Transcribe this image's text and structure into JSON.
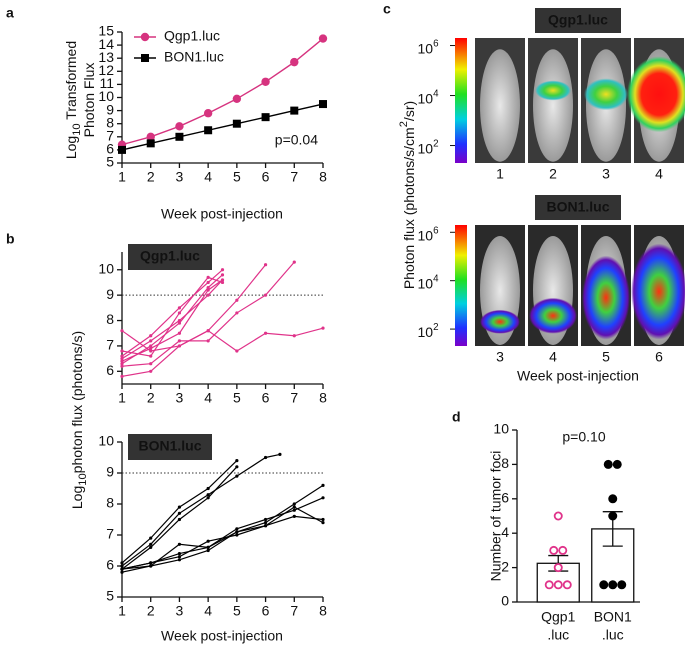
{
  "chart_data": [
    {
      "type": "line",
      "panel": "a",
      "ylabel": [
        [
          "Log",
          {
            "sub": "10"
          },
          " Transformed"
        ],
        [
          "Photon Flux"
        ]
      ],
      "xlabel": "Week post-injection",
      "x": [
        1,
        2,
        3,
        4,
        5,
        6,
        7,
        8
      ],
      "xlim": [
        1,
        8
      ],
      "xticks": [
        1,
        2,
        3,
        4,
        5,
        6,
        7,
        8
      ],
      "ylim": [
        5,
        15
      ],
      "yticks": [
        5,
        6,
        7,
        8,
        9,
        10,
        11,
        12,
        13,
        14,
        15
      ],
      "legend": "upper left",
      "annotation": "p=0.04",
      "series": [
        {
          "name": "Qgp1.luc",
          "color": "#d6337f",
          "marker": "circle",
          "values": [
            6.4,
            7.0,
            7.8,
            8.8,
            9.9,
            11.2,
            12.7,
            14.5
          ]
        },
        {
          "name": "BON1.luc",
          "color": "#000000",
          "marker": "square",
          "values": [
            6.0,
            6.5,
            7.0,
            7.5,
            8.0,
            8.5,
            9.0,
            9.5
          ]
        }
      ]
    },
    {
      "type": "line",
      "panel": "b",
      "tag": "Qgp1.luc",
      "ylabel": [
        [
          "Log",
          {
            "sub": "10"
          },
          "photon flux (photons/s)"
        ]
      ],
      "color": "#e0338a",
      "marker": "dot",
      "xlim": [
        1,
        8
      ],
      "xticks": [
        1,
        2,
        3,
        4,
        5,
        6,
        7,
        8
      ],
      "ylim": [
        5.5,
        10.7
      ],
      "yticks": [
        6,
        7,
        8,
        9,
        10
      ],
      "refline": 9,
      "series": [
        {
          "x": [
            1,
            2,
            3,
            4,
            4.5
          ],
          "values": [
            6.5,
            7.2,
            8.0,
            9.0,
            9.6
          ]
        },
        {
          "x": [
            1,
            2,
            3,
            4,
            4.5
          ],
          "values": [
            6.3,
            7.0,
            7.9,
            9.3,
            9.8
          ]
        },
        {
          "x": [
            1,
            2,
            3,
            4,
            4.5
          ],
          "values": [
            6.6,
            7.4,
            8.5,
            9.5,
            10.0
          ]
        },
        {
          "x": [
            1,
            2,
            3,
            4,
            4.5
          ],
          "values": [
            6.8,
            6.6,
            8.3,
            9.7,
            9.5
          ]
        },
        {
          "x": [
            1,
            2,
            3,
            4,
            5,
            6
          ],
          "values": [
            5.8,
            6.0,
            7.0,
            7.6,
            8.8,
            10.2
          ]
        },
        {
          "x": [
            1,
            2,
            3,
            4,
            5,
            6,
            7
          ],
          "values": [
            6.2,
            6.3,
            7.2,
            7.2,
            8.3,
            9.0,
            10.3
          ]
        },
        {
          "x": [
            1,
            2,
            3,
            4,
            5,
            6,
            7,
            8
          ],
          "values": [
            7.6,
            6.8,
            7.0,
            7.6,
            6.8,
            7.5,
            7.4,
            7.7
          ]
        },
        {
          "x": [
            1,
            2,
            3,
            4,
            4.5
          ],
          "values": [
            6.4,
            6.9,
            7.5,
            9.2,
            9.6
          ]
        }
      ]
    },
    {
      "type": "line",
      "tag": "BON1.luc",
      "xlabel": "Week post-injection",
      "color": "#000000",
      "marker": "dot",
      "xlim": [
        1,
        8
      ],
      "xticks": [
        1,
        2,
        3,
        4,
        5,
        6,
        7,
        8
      ],
      "ylim": [
        5,
        10
      ],
      "yticks": [
        5,
        6,
        7,
        8,
        9,
        10
      ],
      "refline": 9,
      "series": [
        {
          "x": [
            1,
            2,
            3,
            4,
            5,
            6,
            6.5
          ],
          "values": [
            6.0,
            6.7,
            7.7,
            8.3,
            8.9,
            9.5,
            9.6
          ]
        },
        {
          "x": [
            1,
            2,
            3,
            4,
            5
          ],
          "values": [
            6.1,
            6.9,
            7.9,
            8.5,
            9.4
          ]
        },
        {
          "x": [
            1,
            2,
            3,
            4,
            5
          ],
          "values": [
            5.9,
            6.6,
            7.5,
            8.2,
            9.2
          ]
        },
        {
          "x": [
            1,
            2,
            3,
            4,
            5,
            6,
            7,
            8
          ],
          "values": [
            5.9,
            6.1,
            6.4,
            6.6,
            7.1,
            7.4,
            8.0,
            8.6
          ]
        },
        {
          "x": [
            1,
            2,
            3,
            4,
            5,
            6,
            7,
            8
          ],
          "values": [
            5.8,
            6.0,
            6.7,
            6.6,
            7.2,
            7.5,
            7.8,
            8.2
          ]
        },
        {
          "x": [
            1,
            2,
            3,
            4,
            5,
            6,
            7,
            8
          ],
          "values": [
            5.9,
            6.1,
            6.3,
            6.8,
            7.0,
            7.3,
            7.9,
            7.4
          ]
        },
        {
          "x": [
            1,
            2,
            3,
            4,
            5,
            6,
            7,
            8
          ],
          "values": [
            5.9,
            6.0,
            6.2,
            6.5,
            7.1,
            7.3,
            7.6,
            7.5
          ]
        }
      ]
    },
    {
      "type": "bar",
      "panel": "d",
      "ylabel": "Number of tumor foci",
      "annotation": "p=0.10",
      "categories": [
        [
          "Qgp1",
          ".luc"
        ],
        [
          "BON1",
          ".luc"
        ]
      ],
      "values": [
        2.25,
        4.25
      ],
      "errors": [
        0.45,
        1.0
      ],
      "points": [
        [
          5,
          3,
          3,
          2,
          1,
          1,
          1
        ],
        [
          8,
          8,
          6,
          5,
          1,
          1,
          1
        ]
      ],
      "colors": [
        "#e0338a",
        "#000000"
      ],
      "filled": [
        false,
        true
      ],
      "ylim": [
        0,
        10
      ],
      "yticks": [
        0,
        2,
        4,
        6,
        8,
        10
      ]
    }
  ],
  "panel_c": {
    "panel": "c",
    "xlabel": "Week post-injection",
    "rows": [
      {
        "title": "Qgp1.luc",
        "weeks": [
          "1",
          "2",
          "3",
          "4"
        ]
      },
      {
        "title": "BON1.luc",
        "weeks": [
          "3",
          "4",
          "5",
          "6"
        ]
      }
    ],
    "colorbar": {
      "label": [
        "Photon flux (photons/s/cm",
        {
          "sup": "2"
        },
        "/sr)"
      ],
      "log": true,
      "lim": [
        20,
        2000000
      ],
      "ticks": [
        {
          "value": 100,
          "label": [
            "10",
            {
              "sup": "2"
            }
          ]
        },
        {
          "value": 10000,
          "label": [
            "10",
            {
              "sup": "4"
            }
          ]
        },
        {
          "value": 1000000,
          "label": [
            "10",
            {
              "sup": "6"
            }
          ]
        }
      ]
    }
  }
}
